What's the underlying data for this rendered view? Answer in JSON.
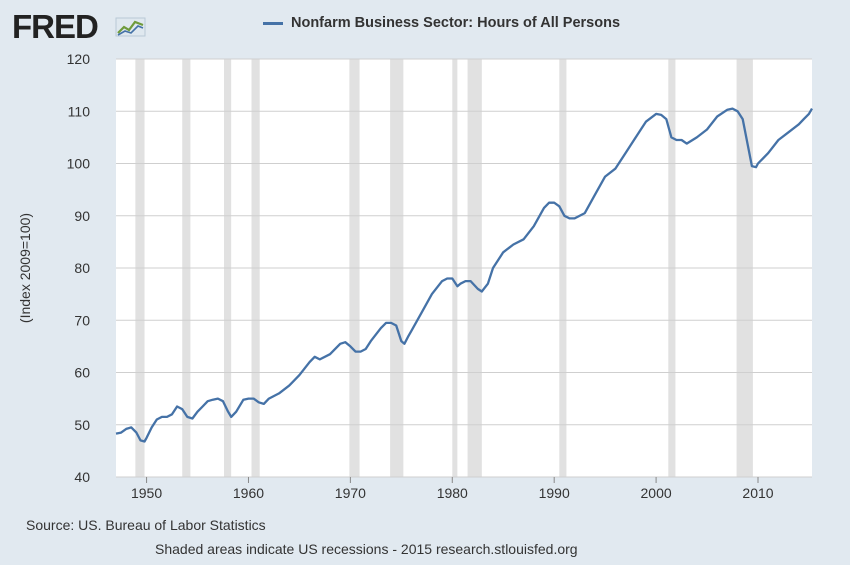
{
  "logo": {
    "text": "FRED"
  },
  "legend": {
    "label": "Nonfarm Business Sector: Hours of All Persons",
    "color": "#4572a7"
  },
  "footer": {
    "source": "Source: US. Bureau of Labor Statistics",
    "note": "Shaded areas indicate US recessions - 2015 research.stlouisfed.org"
  },
  "chart_data": {
    "type": "line",
    "title": "Nonfarm Business Sector: Hours of All Persons",
    "xlabel": "",
    "ylabel": "(Index 2009=100)",
    "xlim": [
      1947,
      2015.3
    ],
    "ylim": [
      40,
      120
    ],
    "xticks": [
      1950,
      1960,
      1970,
      1980,
      1990,
      2000,
      2010
    ],
    "yticks": [
      40,
      50,
      60,
      70,
      80,
      90,
      100,
      110,
      120
    ],
    "grid": true,
    "recessions": [
      [
        1948.9,
        1949.8
      ],
      [
        1953.5,
        1954.3
      ],
      [
        1957.6,
        1958.3
      ],
      [
        1960.3,
        1961.1
      ],
      [
        1969.9,
        1970.9
      ],
      [
        1973.9,
        1975.2
      ],
      [
        1980.0,
        1980.5
      ],
      [
        1981.5,
        1982.9
      ],
      [
        1990.5,
        1991.2
      ],
      [
        2001.2,
        2001.9
      ],
      [
        2007.9,
        2009.5
      ]
    ],
    "series": [
      {
        "name": "Nonfarm Business Sector: Hours of All Persons",
        "color": "#4572a7",
        "x": [
          1947.0,
          1947.5,
          1948.0,
          1948.5,
          1949.0,
          1949.4,
          1949.8,
          1950.0,
          1950.5,
          1951.0,
          1951.5,
          1952.0,
          1952.5,
          1953.0,
          1953.5,
          1954.0,
          1954.5,
          1955.0,
          1955.5,
          1956.0,
          1956.5,
          1957.0,
          1957.5,
          1958.0,
          1958.3,
          1958.8,
          1959.5,
          1960.0,
          1960.5,
          1961.0,
          1961.5,
          1962.0,
          1963.0,
          1964.0,
          1965.0,
          1966.0,
          1966.5,
          1967.0,
          1968.0,
          1969.0,
          1969.5,
          1970.0,
          1970.5,
          1971.0,
          1971.5,
          1972.0,
          1973.0,
          1973.5,
          1974.0,
          1974.5,
          1975.0,
          1975.3,
          1975.7,
          1976.0,
          1977.0,
          1978.0,
          1979.0,
          1979.5,
          1980.0,
          1980.5,
          1980.8,
          1981.3,
          1981.8,
          1982.5,
          1982.9,
          1983.5,
          1984.0,
          1985.0,
          1986.0,
          1987.0,
          1988.0,
          1989.0,
          1989.5,
          1990.0,
          1990.5,
          1991.0,
          1991.5,
          1992.0,
          1993.0,
          1994.0,
          1995.0,
          1996.0,
          1997.0,
          1998.0,
          1999.0,
          2000.0,
          2000.5,
          2001.0,
          2001.5,
          2002.0,
          2002.5,
          2003.0,
          2004.0,
          2005.0,
          2006.0,
          2007.0,
          2007.5,
          2008.0,
          2008.5,
          2009.0,
          2009.4,
          2009.8,
          2010.0,
          2011.0,
          2012.0,
          2013.0,
          2014.0,
          2014.5,
          2015.0,
          2015.3
        ],
        "values": [
          48.3,
          48.5,
          49.2,
          49.5,
          48.5,
          47.0,
          46.8,
          47.5,
          49.5,
          51.0,
          51.5,
          51.5,
          52.0,
          53.5,
          53.0,
          51.5,
          51.2,
          52.5,
          53.5,
          54.5,
          54.8,
          55.0,
          54.5,
          52.5,
          51.5,
          52.5,
          54.8,
          55.0,
          55.0,
          54.3,
          54.0,
          55.0,
          56.0,
          57.5,
          59.5,
          62.0,
          63.0,
          62.5,
          63.5,
          65.5,
          65.8,
          65.0,
          64.0,
          64.0,
          64.5,
          66.0,
          68.5,
          69.5,
          69.5,
          69.0,
          66.0,
          65.5,
          67.0,
          68.0,
          71.5,
          75.0,
          77.5,
          78.0,
          78.0,
          76.5,
          77.0,
          77.5,
          77.5,
          76.0,
          75.5,
          77.0,
          80.0,
          83.0,
          84.5,
          85.5,
          88.0,
          91.5,
          92.5,
          92.5,
          91.8,
          90.0,
          89.5,
          89.5,
          90.5,
          94.0,
          97.5,
          99.0,
          102.0,
          105.0,
          108.0,
          109.5,
          109.3,
          108.5,
          105.0,
          104.5,
          104.5,
          103.8,
          105.0,
          106.5,
          109.0,
          110.3,
          110.5,
          110.0,
          108.5,
          103.5,
          99.5,
          99.3,
          100.0,
          102.0,
          104.5,
          106.0,
          107.5,
          108.5,
          109.5,
          110.5
        ]
      }
    ]
  }
}
